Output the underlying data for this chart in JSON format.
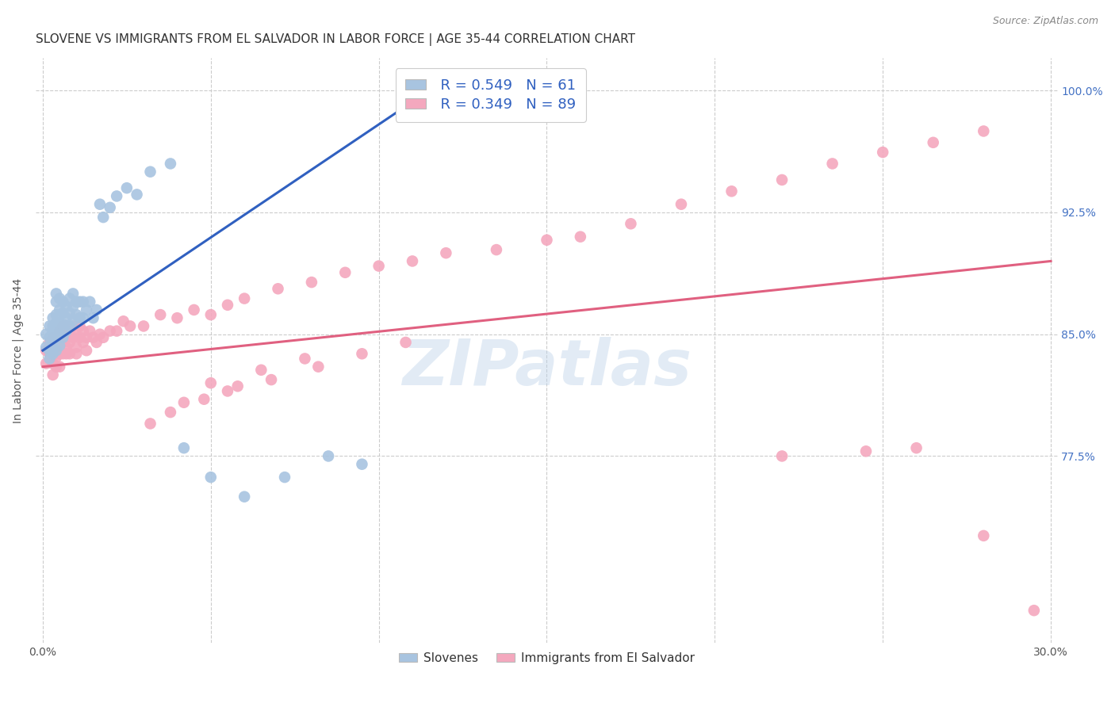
{
  "title": "SLOVENE VS IMMIGRANTS FROM EL SALVADOR IN LABOR FORCE | AGE 35-44 CORRELATION CHART",
  "source": "Source: ZipAtlas.com",
  "ylabel": "In Labor Force | Age 35-44",
  "legend_blue_R": "R = 0.549",
  "legend_blue_N": "N = 61",
  "legend_pink_R": "R = 0.349",
  "legend_pink_N": "N = 89",
  "legend_blue_label": "Slovenes",
  "legend_pink_label": "Immigrants from El Salvador",
  "watermark": "ZIPatlas",
  "blue_color": "#a8c4e0",
  "pink_color": "#f4a8be",
  "blue_line_color": "#3060c0",
  "pink_line_color": "#e06080",
  "title_color": "#333333",
  "axis_label_color": "#555555",
  "tick_color_right": "#4472c4",
  "background_color": "#ffffff",
  "grid_color": "#cccccc",
  "blue_scatter_x": [
    0.001,
    0.001,
    0.002,
    0.002,
    0.002,
    0.002,
    0.003,
    0.003,
    0.003,
    0.003,
    0.003,
    0.004,
    0.004,
    0.004,
    0.004,
    0.004,
    0.004,
    0.004,
    0.005,
    0.005,
    0.005,
    0.005,
    0.005,
    0.006,
    0.006,
    0.006,
    0.006,
    0.007,
    0.007,
    0.007,
    0.008,
    0.008,
    0.008,
    0.009,
    0.009,
    0.009,
    0.01,
    0.01,
    0.011,
    0.011,
    0.012,
    0.012,
    0.013,
    0.014,
    0.015,
    0.016,
    0.017,
    0.018,
    0.02,
    0.022,
    0.025,
    0.028,
    0.032,
    0.038,
    0.042,
    0.05,
    0.06,
    0.072,
    0.085,
    0.095,
    0.115
  ],
  "blue_scatter_y": [
    0.85,
    0.842,
    0.855,
    0.848,
    0.84,
    0.835,
    0.852,
    0.845,
    0.838,
    0.855,
    0.86,
    0.848,
    0.84,
    0.853,
    0.857,
    0.862,
    0.87,
    0.875,
    0.843,
    0.85,
    0.857,
    0.865,
    0.872,
    0.848,
    0.856,
    0.863,
    0.87,
    0.852,
    0.86,
    0.867,
    0.855,
    0.863,
    0.872,
    0.858,
    0.867,
    0.875,
    0.862,
    0.87,
    0.86,
    0.87,
    0.86,
    0.87,
    0.865,
    0.87,
    0.86,
    0.865,
    0.93,
    0.922,
    0.928,
    0.935,
    0.94,
    0.936,
    0.95,
    0.955,
    0.78,
    0.762,
    0.75,
    0.762,
    0.775,
    0.77,
    1.0
  ],
  "pink_scatter_x": [
    0.001,
    0.001,
    0.002,
    0.002,
    0.003,
    0.003,
    0.003,
    0.003,
    0.004,
    0.004,
    0.004,
    0.004,
    0.005,
    0.005,
    0.005,
    0.005,
    0.005,
    0.006,
    0.006,
    0.006,
    0.006,
    0.007,
    0.007,
    0.007,
    0.007,
    0.008,
    0.008,
    0.008,
    0.009,
    0.009,
    0.01,
    0.01,
    0.01,
    0.011,
    0.011,
    0.012,
    0.012,
    0.013,
    0.013,
    0.014,
    0.015,
    0.016,
    0.017,
    0.018,
    0.02,
    0.022,
    0.024,
    0.026,
    0.03,
    0.035,
    0.04,
    0.045,
    0.05,
    0.055,
    0.06,
    0.07,
    0.08,
    0.09,
    0.1,
    0.11,
    0.12,
    0.135,
    0.15,
    0.16,
    0.175,
    0.19,
    0.205,
    0.22,
    0.235,
    0.25,
    0.265,
    0.28,
    0.05,
    0.065,
    0.078,
    0.042,
    0.055,
    0.068,
    0.082,
    0.095,
    0.108,
    0.032,
    0.038,
    0.048,
    0.058,
    0.22,
    0.245,
    0.26,
    0.28,
    0.295
  ],
  "pink_scatter_y": [
    0.84,
    0.832,
    0.845,
    0.838,
    0.848,
    0.84,
    0.832,
    0.825,
    0.843,
    0.836,
    0.83,
    0.848,
    0.838,
    0.845,
    0.838,
    0.83,
    0.852,
    0.838,
    0.845,
    0.855,
    0.848,
    0.842,
    0.848,
    0.838,
    0.855,
    0.845,
    0.852,
    0.838,
    0.848,
    0.855,
    0.842,
    0.85,
    0.838,
    0.848,
    0.855,
    0.845,
    0.852,
    0.848,
    0.84,
    0.852,
    0.848,
    0.845,
    0.85,
    0.848,
    0.852,
    0.852,
    0.858,
    0.855,
    0.855,
    0.862,
    0.86,
    0.865,
    0.862,
    0.868,
    0.872,
    0.878,
    0.882,
    0.888,
    0.892,
    0.895,
    0.9,
    0.902,
    0.908,
    0.91,
    0.918,
    0.93,
    0.938,
    0.945,
    0.955,
    0.962,
    0.968,
    0.975,
    0.82,
    0.828,
    0.835,
    0.808,
    0.815,
    0.822,
    0.83,
    0.838,
    0.845,
    0.795,
    0.802,
    0.81,
    0.818,
    0.775,
    0.778,
    0.78,
    0.726,
    0.68
  ],
  "blue_line_x": [
    0.0,
    0.115
  ],
  "blue_line_y": [
    0.84,
    1.0
  ],
  "pink_line_x": [
    0.0,
    0.3
  ],
  "pink_line_y": [
    0.83,
    0.895
  ],
  "xlim": [
    -0.002,
    0.302
  ],
  "ylim": [
    0.66,
    1.02
  ],
  "ytick_vals": [
    0.775,
    0.85,
    0.925,
    1.0
  ],
  "ytick_labels": [
    "77.5%",
    "85.0%",
    "92.5%",
    "100.0%"
  ],
  "xtick_vals": [
    0.0,
    0.05,
    0.1,
    0.15,
    0.2,
    0.25,
    0.3
  ],
  "xtick_labels_show": [
    "0.0%",
    "",
    "",
    "",
    "",
    "",
    "30.0%"
  ]
}
